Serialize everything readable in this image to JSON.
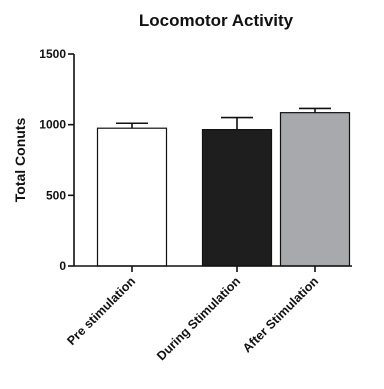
{
  "chart_data": {
    "type": "bar",
    "title": "Locomotor Activity",
    "xlabel": "",
    "ylabel": "Total  Conuts",
    "ylim": [
      0,
      1500
    ],
    "yticks": [
      0,
      500,
      1000,
      1500
    ],
    "categories": [
      "Pre stimulation",
      "During Stimulation",
      "After Stimulation"
    ],
    "values": [
      975,
      965,
      1085
    ],
    "errors": [
      35,
      85,
      30
    ],
    "error_direction": "upper",
    "bar_colors": [
      "#ffffff",
      "#1e1e1e",
      "#a7a9ac"
    ],
    "bar_edge_color": "#111111",
    "grid": false,
    "legend": "none"
  }
}
